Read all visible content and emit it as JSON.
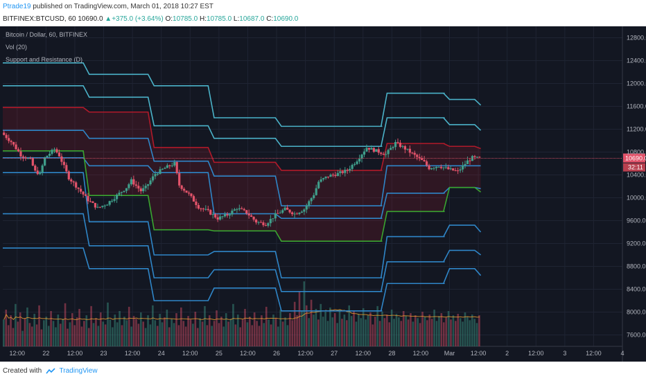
{
  "header": {
    "publisher": "Ptrade19",
    "published_text": "published on TradingView.com, March 01, 2018 10:27 EST",
    "symbol": "BITFINEX:BTCUSD, 60",
    "last": "10690.0",
    "change": "+375.0 (+3.64%)",
    "o_label": "O:",
    "o": "10785.0",
    "h_label": "H:",
    "h": "10785.0",
    "l_label": "L:",
    "l": "10687.0",
    "c_label": "C:",
    "c": "10690.0"
  },
  "legend": {
    "title": "Bitcoin / Dollar, 60, BITFINEX",
    "vol": "Vol (20)",
    "sr": "Support and Resistance (D)"
  },
  "footer": {
    "created_with": "Created with",
    "brand": "TradingView"
  },
  "colors": {
    "background": "#131722",
    "grid": "#1f2433",
    "up": "#3f9e8a",
    "down": "#e2536a",
    "resistance": "#b01a2a",
    "support": "#3aa530",
    "pivot_lines": "#2f86c8",
    "outer_lines": "#4bb3c9",
    "price_tag": "#e2536a",
    "vol_ma": "#f0a030"
  },
  "chart_data": {
    "type": "line",
    "ylim": [
      7400,
      13000
    ],
    "yticks": [
      "12800.0",
      "12400.0",
      "12000.0",
      "11600.0",
      "11200.0",
      "10800.0",
      "10400.0",
      "10000.0",
      "9600.0",
      "9200.0",
      "8800.0",
      "8400.0",
      "8000.0",
      "7600.0"
    ],
    "ytick_values": [
      12800,
      12400,
      12000,
      11600,
      11200,
      10800,
      10400,
      10000,
      9600,
      9200,
      8800,
      8400,
      8000,
      7600
    ],
    "xlim": [
      0,
      258
    ],
    "xticks": [
      {
        "pos": 6,
        "label": "12:00"
      },
      {
        "pos": 18,
        "label": "22"
      },
      {
        "pos": 30,
        "label": "12:00"
      },
      {
        "pos": 42,
        "label": "23"
      },
      {
        "pos": 54,
        "label": "12:00"
      },
      {
        "pos": 66,
        "label": "24"
      },
      {
        "pos": 78,
        "label": "12:00"
      },
      {
        "pos": 90,
        "label": "25"
      },
      {
        "pos": 102,
        "label": "12:00"
      },
      {
        "pos": 114,
        "label": "26"
      },
      {
        "pos": 126,
        "label": "12:00"
      },
      {
        "pos": 138,
        "label": "27"
      },
      {
        "pos": 150,
        "label": "12:00"
      },
      {
        "pos": 162,
        "label": "28"
      },
      {
        "pos": 174,
        "label": "12:00"
      },
      {
        "pos": 186,
        "label": "Mar"
      },
      {
        "pos": 198,
        "label": "12:00"
      },
      {
        "pos": 210,
        "label": "2"
      },
      {
        "pos": 222,
        "label": "12:00"
      },
      {
        "pos": 234,
        "label": "3"
      },
      {
        "pos": 246,
        "label": "12:00"
      },
      {
        "pos": 258,
        "label": "4"
      }
    ],
    "last_price": 10690.0,
    "last_price_label": "10690.0",
    "countdown_label": "32:11",
    "close_path": [
      [
        0,
        11140
      ],
      [
        4,
        10980
      ],
      [
        8,
        10750
      ],
      [
        12,
        10660
      ],
      [
        14,
        10460
      ],
      [
        16,
        10420
      ],
      [
        18,
        10700
      ],
      [
        22,
        10850
      ],
      [
        24,
        10740
      ],
      [
        28,
        10350
      ],
      [
        32,
        10160
      ],
      [
        36,
        9960
      ],
      [
        40,
        9820
      ],
      [
        44,
        9900
      ],
      [
        48,
        10040
      ],
      [
        52,
        10180
      ],
      [
        54,
        10300
      ],
      [
        58,
        10120
      ],
      [
        60,
        10180
      ],
      [
        64,
        10420
      ],
      [
        68,
        10520
      ],
      [
        72,
        10600
      ],
      [
        74,
        10220
      ],
      [
        78,
        10060
      ],
      [
        82,
        9840
      ],
      [
        86,
        9760
      ],
      [
        90,
        9640
      ],
      [
        94,
        9700
      ],
      [
        98,
        9820
      ],
      [
        102,
        9740
      ],
      [
        106,
        9580
      ],
      [
        110,
        9540
      ],
      [
        114,
        9700
      ],
      [
        118,
        9800
      ],
      [
        122,
        9720
      ],
      [
        126,
        9800
      ],
      [
        130,
        10060
      ],
      [
        132,
        10280
      ],
      [
        136,
        10380
      ],
      [
        140,
        10420
      ],
      [
        144,
        10480
      ],
      [
        148,
        10660
      ],
      [
        152,
        10880
      ],
      [
        156,
        10820
      ],
      [
        160,
        10760
      ],
      [
        164,
        10960
      ],
      [
        168,
        10860
      ],
      [
        172,
        10740
      ],
      [
        176,
        10620
      ],
      [
        178,
        10520
      ],
      [
        182,
        10560
      ],
      [
        186,
        10500
      ],
      [
        190,
        10460
      ],
      [
        194,
        10640
      ],
      [
        196,
        10700
      ],
      [
        198,
        10690
      ],
      [
        199,
        10690
      ]
    ],
    "bands": [
      {
        "name": "",
        "role": "outer_upper",
        "steps": [
          [
            0,
            12360
          ],
          [
            36,
            12160
          ],
          [
            63,
            11960
          ],
          [
            88,
            11400
          ],
          [
            113,
            11400
          ],
          [
            116,
            11250
          ],
          [
            158,
            11250
          ],
          [
            160,
            11830
          ],
          [
            184,
            11830
          ],
          [
            186,
            11720
          ],
          [
            199,
            11620
          ]
        ]
      },
      {
        "name": "",
        "role": "r2",
        "steps": [
          [
            0,
            11960
          ],
          [
            36,
            11760
          ],
          [
            63,
            11260
          ],
          [
            88,
            11040
          ],
          [
            113,
            11040
          ],
          [
            116,
            10900
          ],
          [
            158,
            10900
          ],
          [
            160,
            11400
          ],
          [
            184,
            11400
          ],
          [
            186,
            11280
          ],
          [
            199,
            11180
          ]
        ]
      },
      {
        "name": "",
        "role": "r1",
        "steps": [
          [
            0,
            11580
          ],
          [
            36,
            11500
          ],
          [
            63,
            10880
          ],
          [
            88,
            10620
          ],
          [
            113,
            10620
          ],
          [
            116,
            10480
          ],
          [
            158,
            10480
          ],
          [
            160,
            10950
          ],
          [
            184,
            10950
          ],
          [
            186,
            10900
          ],
          [
            199,
            10860
          ]
        ]
      },
      {
        "name": "",
        "role": "pivot_upper",
        "steps": [
          [
            0,
            11180
          ],
          [
            36,
            11040
          ],
          [
            63,
            10640
          ],
          [
            88,
            10380
          ],
          [
            113,
            10380
          ],
          [
            116,
            9860
          ],
          [
            158,
            9860
          ],
          [
            160,
            10560
          ],
          [
            184,
            10560
          ],
          [
            186,
            10560
          ],
          [
            199,
            10560
          ]
        ]
      },
      {
        "name": "",
        "role": "pivot_lower",
        "steps": [
          [
            0,
            10700
          ],
          [
            36,
            10560
          ],
          [
            63,
            10440
          ],
          [
            88,
            9720
          ],
          [
            113,
            9720
          ],
          [
            116,
            9640
          ],
          [
            158,
            9640
          ],
          [
            160,
            10080
          ],
          [
            184,
            10080
          ],
          [
            186,
            10180
          ],
          [
            199,
            10160
          ]
        ]
      },
      {
        "name": "",
        "role": "s1",
        "steps": [
          [
            0,
            10820
          ],
          [
            36,
            10040
          ],
          [
            63,
            9440
          ],
          [
            88,
            9420
          ],
          [
            113,
            9420
          ],
          [
            116,
            9240
          ],
          [
            158,
            9240
          ],
          [
            160,
            9760
          ],
          [
            184,
            9760
          ],
          [
            186,
            10180
          ],
          [
            199,
            10100
          ]
        ]
      },
      {
        "name": "",
        "role": "s2",
        "steps": [
          [
            0,
            10440
          ],
          [
            36,
            9580
          ],
          [
            63,
            9000
          ],
          [
            88,
            9060
          ],
          [
            113,
            9060
          ],
          [
            116,
            8600
          ],
          [
            158,
            8600
          ],
          [
            160,
            9320
          ],
          [
            184,
            9320
          ],
          [
            186,
            9520
          ],
          [
            199,
            9400
          ]
        ]
      },
      {
        "name": "",
        "role": "s3",
        "steps": [
          [
            0,
            9720
          ],
          [
            36,
            9160
          ],
          [
            63,
            8600
          ],
          [
            88,
            8740
          ],
          [
            113,
            8740
          ],
          [
            116,
            8360
          ],
          [
            158,
            8360
          ],
          [
            160,
            8880
          ],
          [
            184,
            8880
          ],
          [
            186,
            9080
          ],
          [
            199,
            9000
          ]
        ]
      },
      {
        "name": "",
        "role": "outer_lower",
        "steps": [
          [
            0,
            9120
          ],
          [
            36,
            8760
          ],
          [
            63,
            8200
          ],
          [
            88,
            8420
          ],
          [
            113,
            8420
          ],
          [
            116,
            8020
          ],
          [
            158,
            8020
          ],
          [
            160,
            8500
          ],
          [
            184,
            8500
          ],
          [
            186,
            8760
          ],
          [
            199,
            8640
          ]
        ]
      }
    ],
    "volume": [
      38,
      52,
      30,
      44,
      26,
      60,
      35,
      48,
      22,
      40,
      55,
      33,
      28,
      46,
      31,
      58,
      24,
      37,
      42,
      29,
      50,
      36,
      27,
      45,
      32,
      39,
      61,
      25,
      34,
      47,
      30,
      41,
      53,
      28,
      36,
      44,
      26,
      57,
      33,
      40,
      29,
      48,
      35,
      31,
      62,
      38,
      27,
      45,
      34,
      50,
      30,
      42,
      37,
      56,
      28,
      43,
      39,
      32,
      48,
      35,
      26,
      44,
      31,
      58,
      37,
      29,
      46,
      34,
      41,
      52,
      27,
      39,
      33,
      47,
      30,
      55,
      36,
      28,
      43,
      38,
      32,
      49,
      26,
      40,
      35,
      57,
      30,
      44,
      29,
      36,
      51,
      33,
      42,
      28,
      47,
      35,
      39,
      60,
      31,
      45,
      27,
      38,
      53,
      34,
      42,
      30,
      48,
      36,
      29,
      44,
      33,
      56,
      38,
      31,
      45,
      40,
      28,
      52,
      35,
      41,
      30,
      47,
      37,
      63,
      44,
      78,
      50,
      92,
      58,
      40,
      66,
      45,
      53,
      38,
      60,
      42,
      49,
      36,
      55,
      41,
      47,
      33,
      52,
      39,
      45,
      37,
      58,
      43,
      50,
      35,
      46,
      40,
      54,
      38,
      44,
      48,
      31,
      42,
      57,
      36,
      49,
      40,
      45,
      34,
      52,
      39,
      46,
      41,
      36,
      50,
      43,
      38,
      47,
      35,
      44,
      40,
      33,
      49,
      42,
      37,
      45,
      39,
      52,
      36,
      43,
      47,
      34,
      41,
      50,
      38,
      44,
      36,
      46,
      40,
      35,
      48,
      42,
      37,
      45,
      39,
      33,
      44
    ],
    "volume_up_ratio": 0.5,
    "vol_scale_max": 100
  }
}
